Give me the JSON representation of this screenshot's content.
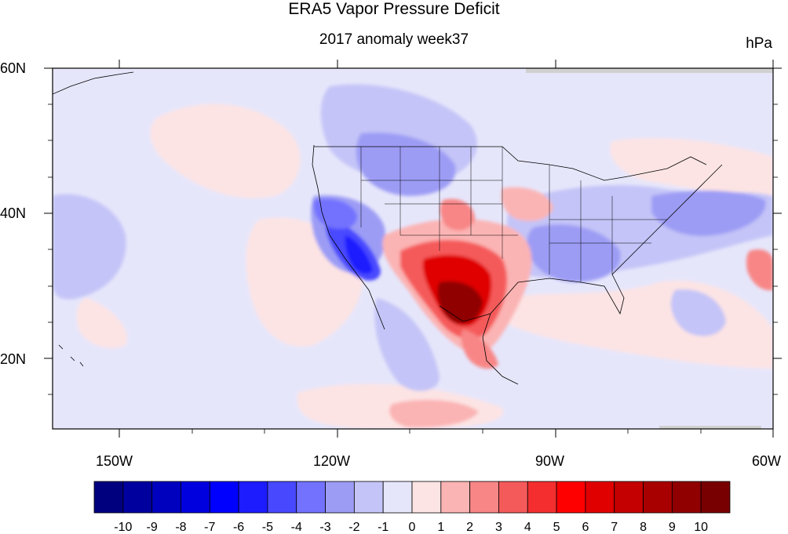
{
  "title": "ERA5 Vapor Pressure Deficit",
  "subtitle": "2017 anomaly week37",
  "units": "hPa",
  "lat_labels": [
    "60N",
    "40N",
    "20N"
  ],
  "lon_labels": [
    "150W",
    "120W",
    "90W",
    "60W"
  ],
  "colorbar": {
    "labels": [
      "-10",
      "-9",
      "-8",
      "-7",
      "-6",
      "-5",
      "-4",
      "-3",
      "-2",
      "-1",
      "0",
      "1",
      "2",
      "3",
      "4",
      "5",
      "6",
      "7",
      "8",
      "9",
      "10"
    ],
    "colors": [
      "#00007f",
      "#00009f",
      "#0000bf",
      "#0000df",
      "#0000ff",
      "#1c1cff",
      "#4848ff",
      "#7272ff",
      "#9c9cf5",
      "#c4c4f8",
      "#e6e6fb",
      "#fde4e4",
      "#fbb4b4",
      "#f88686",
      "#f55a5a",
      "#f42e2e",
      "#ff0000",
      "#e00000",
      "#c40000",
      "#a80000",
      "#900000",
      "#780000"
    ]
  },
  "map": {
    "background": "#e6e6fb",
    "lon_range": [
      -160,
      -60
    ],
    "lat_range": [
      10,
      60
    ]
  }
}
